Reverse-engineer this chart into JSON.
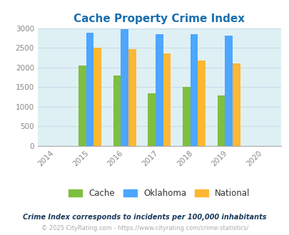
{
  "title": "Cache Property Crime Index",
  "years": [
    2015,
    2016,
    2017,
    2018,
    2019
  ],
  "xticks": [
    2014,
    2015,
    2016,
    2017,
    2018,
    2019,
    2020
  ],
  "xlim": [
    2013.5,
    2020.5
  ],
  "ylim": [
    0,
    3000
  ],
  "yticks": [
    0,
    500,
    1000,
    1500,
    2000,
    2500,
    3000
  ],
  "cache": [
    2050,
    1800,
    1330,
    1500,
    1280
  ],
  "oklahoma": [
    2880,
    2980,
    2840,
    2840,
    2820
  ],
  "national": [
    2500,
    2460,
    2360,
    2180,
    2100
  ],
  "cache_color": "#7fbf3f",
  "oklahoma_color": "#4da6ff",
  "national_color": "#ffb733",
  "title_color": "#1a6faf",
  "title_fontsize": 11,
  "bar_width": 0.22,
  "bg_color": "#dff0f5",
  "grid_color": "#c8dde8",
  "legend_labels": [
    "Cache",
    "Oklahoma",
    "National"
  ],
  "footnote1": "Crime Index corresponds to incidents per 100,000 inhabitants",
  "footnote2": "© 2025 CityRating.com - https://www.cityrating.com/crime-statistics/",
  "footnote1_color": "#1a3a5c",
  "footnote2_color": "#aaaaaa",
  "tick_color": "#888888",
  "tick_fontsize": 7.5
}
